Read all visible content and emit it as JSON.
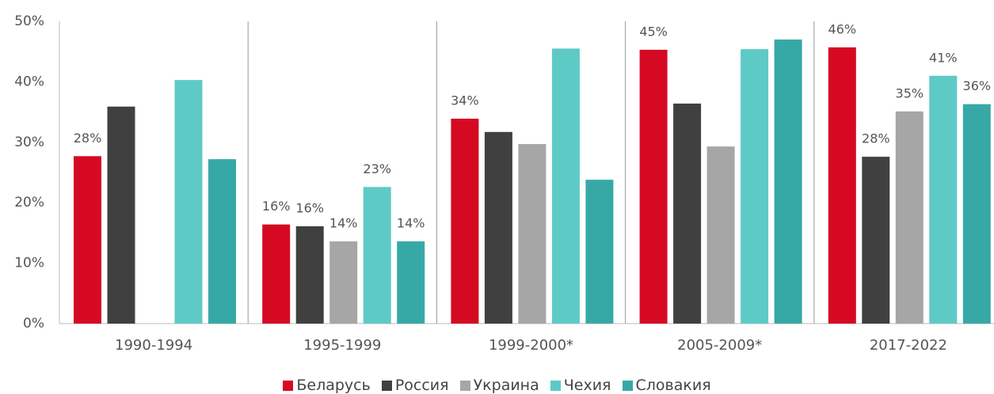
{
  "chart_data": {
    "type": "bar",
    "categories": [
      "1990-1994",
      "1995-1999",
      "1999-2000*",
      "2005-2009*",
      "2017-2022"
    ],
    "series": [
      {
        "name": "Беларусь",
        "color": "#d50a22",
        "values": [
          27.7,
          16.4,
          33.9,
          45.3,
          45.7
        ],
        "value_labels": [
          "28%",
          "16%",
          "34%",
          "45%",
          "46%"
        ]
      },
      {
        "name": "Россия",
        "color": "#404040",
        "values": [
          35.9,
          16.1,
          31.7,
          36.4,
          27.6
        ],
        "value_labels": [
          null,
          "16%",
          null,
          null,
          "28%"
        ]
      },
      {
        "name": "Украина",
        "color": "#a6a6a6",
        "values": [
          null,
          13.6,
          29.7,
          29.3,
          35.1
        ],
        "value_labels": [
          null,
          "14%",
          null,
          null,
          "35%"
        ]
      },
      {
        "name": "Чехия",
        "color": "#5ecac6",
        "values": [
          40.3,
          22.6,
          45.5,
          45.4,
          41.0
        ],
        "value_labels": [
          null,
          "23%",
          null,
          null,
          "41%"
        ]
      },
      {
        "name": "Словакия",
        "color": "#36a9a6",
        "values": [
          27.2,
          13.6,
          23.8,
          47.0,
          36.3
        ],
        "value_labels": [
          null,
          "14%",
          null,
          null,
          "36%"
        ]
      }
    ],
    "ylim": [
      0,
      50
    ],
    "yticks": [
      {
        "value": 0,
        "label": "0%"
      },
      {
        "value": 10,
        "label": "10%"
      },
      {
        "value": 20,
        "label": "20%"
      },
      {
        "value": 30,
        "label": "30%"
      },
      {
        "value": 40,
        "label": "40%"
      },
      {
        "value": 50,
        "label": "50%"
      }
    ],
    "grid": false
  }
}
